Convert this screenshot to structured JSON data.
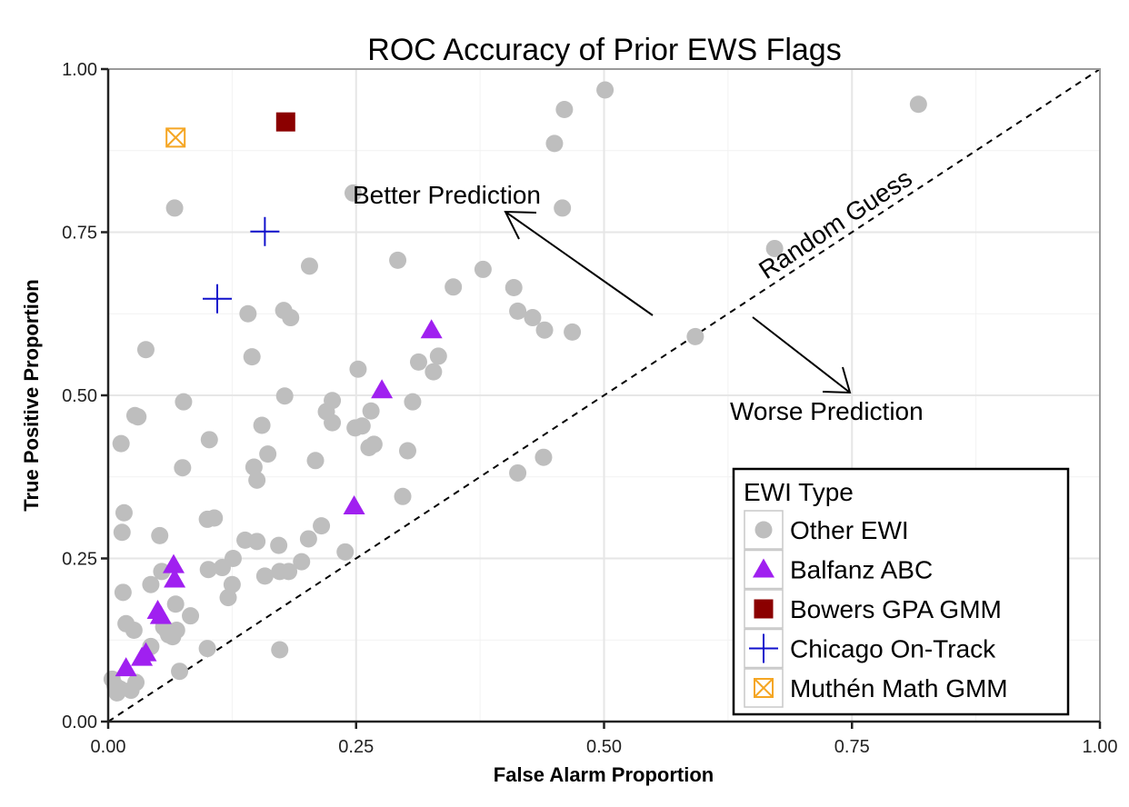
{
  "chart_data": {
    "type": "scatter",
    "title": "ROC Accuracy of Prior EWS Flags",
    "xlabel": "False Alarm Proportion",
    "ylabel": "True Positive Proportion",
    "xlim": [
      0,
      1
    ],
    "ylim": [
      0,
      1
    ],
    "x_ticks": [
      "0.00",
      "0.25",
      "0.50",
      "0.75",
      "1.00"
    ],
    "y_ticks": [
      "0.00",
      "0.25",
      "0.50",
      "0.75",
      "1.00"
    ],
    "grid": true,
    "legend": {
      "title": "EWI Type",
      "position": "bottom-right"
    },
    "annotations": {
      "better": "Better Prediction",
      "worse": "Worse Prediction",
      "random": "Random Guess"
    },
    "reference_line": {
      "type": "diagonal",
      "style": "dashed",
      "label": "Random Guess"
    },
    "series": [
      {
        "name": "Other EWI",
        "marker": "circle",
        "color": "#bebebe",
        "x": [
          0.501,
          0.46,
          0.45,
          0.458,
          0.817,
          0.247,
          0.067,
          0.672,
          0.203,
          0.292,
          0.378,
          0.348,
          0.409,
          0.413,
          0.428,
          0.44,
          0.468,
          0.592,
          0.141,
          0.177,
          0.184,
          0.038,
          0.145,
          0.333,
          0.313,
          0.328,
          0.252,
          0.076,
          0.178,
          0.226,
          0.307,
          0.22,
          0.226,
          0.265,
          0.249,
          0.256,
          0.155,
          0.161,
          0.268,
          0.027,
          0.03,
          0.013,
          0.102,
          0.147,
          0.263,
          0.302,
          0.209,
          0.075,
          0.15,
          0.413,
          0.439,
          0.297,
          0.1,
          0.107,
          0.215,
          0.202,
          0.016,
          0.014,
          0.052,
          0.138,
          0.15,
          0.172,
          0.239,
          0.115,
          0.126,
          0.182,
          0.173,
          0.158,
          0.195,
          0.101,
          0.054,
          0.043,
          0.125,
          0.015,
          0.121,
          0.083,
          0.068,
          0.018,
          0.069,
          0.059,
          0.056,
          0.026,
          0.043,
          0.061,
          0.065,
          0.1,
          0.173,
          0.072,
          0.004,
          0.023,
          0.009,
          0.012,
          0.028,
          0.007
        ],
        "y": [
          0.968,
          0.938,
          0.886,
          0.787,
          0.946,
          0.81,
          0.787,
          0.725,
          0.698,
          0.707,
          0.693,
          0.666,
          0.665,
          0.629,
          0.619,
          0.6,
          0.597,
          0.59,
          0.625,
          0.63,
          0.619,
          0.57,
          0.559,
          0.56,
          0.551,
          0.536,
          0.54,
          0.49,
          0.499,
          0.492,
          0.49,
          0.475,
          0.458,
          0.476,
          0.45,
          0.453,
          0.454,
          0.41,
          0.425,
          0.469,
          0.467,
          0.426,
          0.432,
          0.39,
          0.42,
          0.415,
          0.4,
          0.389,
          0.37,
          0.381,
          0.405,
          0.345,
          0.31,
          0.312,
          0.3,
          0.28,
          0.32,
          0.29,
          0.285,
          0.278,
          0.276,
          0.27,
          0.26,
          0.236,
          0.25,
          0.23,
          0.23,
          0.223,
          0.245,
          0.233,
          0.23,
          0.21,
          0.21,
          0.198,
          0.19,
          0.162,
          0.18,
          0.15,
          0.14,
          0.14,
          0.145,
          0.14,
          0.115,
          0.133,
          0.13,
          0.112,
          0.11,
          0.077,
          0.065,
          0.048,
          0.044,
          0.05,
          0.06,
          0.055
        ]
      },
      {
        "name": "Balfanz ABC",
        "marker": "triangle",
        "color": "#a020f0",
        "x": [
          0.326,
          0.276,
          0.248,
          0.066,
          0.067,
          0.05,
          0.053,
          0.038,
          0.034,
          0.018
        ],
        "y": [
          0.6,
          0.508,
          0.33,
          0.24,
          0.218,
          0.17,
          0.162,
          0.105,
          0.098,
          0.082
        ]
      },
      {
        "name": "Bowers GPA GMM",
        "marker": "square",
        "color": "#8b0000",
        "x": [
          0.179
        ],
        "y": [
          0.919
        ]
      },
      {
        "name": "Chicago On-Track",
        "marker": "plus",
        "color": "#1010cc",
        "x": [
          0.158,
          0.11
        ],
        "y": [
          0.751,
          0.648
        ]
      },
      {
        "name": "Muthén Math GMM",
        "marker": "boxx",
        "color": "#f5a623",
        "x": [
          0.068
        ],
        "y": [
          0.895
        ]
      }
    ]
  }
}
